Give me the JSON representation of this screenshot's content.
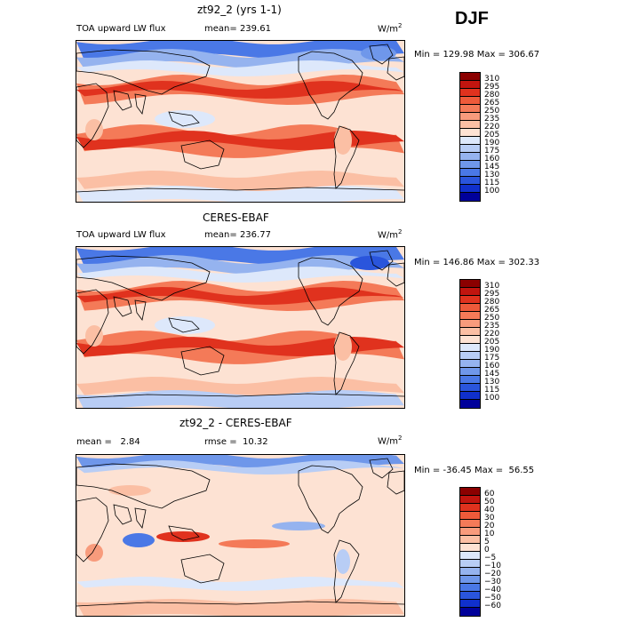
{
  "season": "DJF",
  "panels": [
    {
      "title": "zt92_2 (yrs 1-1)",
      "left_label": "TOA upward LW flux",
      "mean_label": "mean=",
      "mean_value": "239.61",
      "units": "W/m",
      "units_sup": "2",
      "min_label": "Min =",
      "min_value": "129.98",
      "max_label": "Max =",
      "max_value": "306.67",
      "colorbar": {
        "levels": [
          "310",
          "295",
          "280",
          "265",
          "250",
          "235",
          "220",
          "205",
          "190",
          "175",
          "160",
          "145",
          "130",
          "115",
          "100"
        ],
        "colors": [
          "#8b0000",
          "#c1150f",
          "#e0321e",
          "#ee5a3a",
          "#f47a58",
          "#f89b7c",
          "#fbbfa4",
          "#fde2d3",
          "#dde8fb",
          "#b8cdf5",
          "#95b3ef",
          "#6f97ea",
          "#4a78e6",
          "#2a55dc",
          "#1030cc",
          "#00009a"
        ]
      },
      "map_pattern": "model"
    },
    {
      "title": "CERES-EBAF",
      "left_label": "TOA upward LW flux",
      "mean_label": "mean=",
      "mean_value": "236.77",
      "units": "W/m",
      "units_sup": "2",
      "min_label": "Min =",
      "min_value": "146.86",
      "max_label": "Max =",
      "max_value": "302.33",
      "colorbar": {
        "levels": [
          "310",
          "295",
          "280",
          "265",
          "250",
          "235",
          "220",
          "205",
          "190",
          "175",
          "160",
          "145",
          "130",
          "115",
          "100"
        ],
        "colors": [
          "#8b0000",
          "#c1150f",
          "#e0321e",
          "#ee5a3a",
          "#f47a58",
          "#f89b7c",
          "#fbbfa4",
          "#fde2d3",
          "#dde8fb",
          "#b8cdf5",
          "#95b3ef",
          "#6f97ea",
          "#4a78e6",
          "#2a55dc",
          "#1030cc",
          "#00009a"
        ]
      },
      "map_pattern": "obs"
    },
    {
      "title": "zt92_2 - CERES-EBAF",
      "left_label": "mean =",
      "left_value": "2.84",
      "mean_label": "rmse =",
      "mean_value": "10.32",
      "units": "W/m",
      "units_sup": "2",
      "min_label": "Min =",
      "min_value": "-36.45",
      "max_label": "Max =",
      "max_value": "56.55",
      "colorbar": {
        "levels": [
          "60",
          "50",
          "40",
          "30",
          "20",
          "10",
          "5",
          "0",
          "−5",
          "−10",
          "−20",
          "−30",
          "−40",
          "−50",
          "−60"
        ],
        "colors": [
          "#8b0000",
          "#c1150f",
          "#e0321e",
          "#ee5a3a",
          "#f47a58",
          "#f89b7c",
          "#fbbfa4",
          "#fde2d3",
          "#dde8fb",
          "#b8cdf5",
          "#95b3ef",
          "#6f97ea",
          "#4a78e6",
          "#2a55dc",
          "#1030cc",
          "#00009a"
        ]
      },
      "map_pattern": "diff"
    }
  ]
}
